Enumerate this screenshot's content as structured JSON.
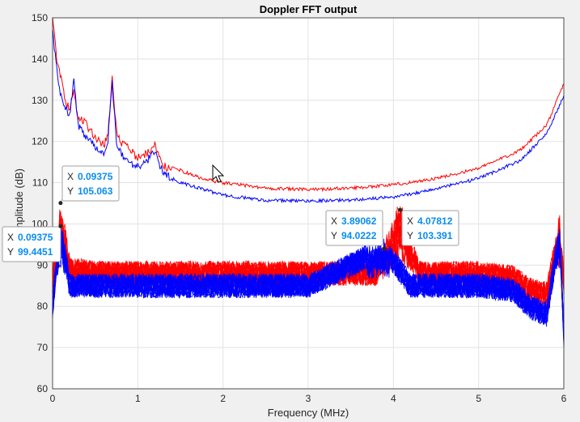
{
  "chart_data": {
    "type": "line",
    "title": "Doppler FFT output",
    "xlabel": "Frequency (MHz)",
    "ylabel": "Amplitude (dB)",
    "xlim": [
      0,
      6
    ],
    "ylim": [
      60,
      150
    ],
    "xticks": [
      "0",
      "1",
      "2",
      "3",
      "4",
      "5",
      "6"
    ],
    "yticks": [
      "60",
      "70",
      "80",
      "90",
      "100",
      "110",
      "120",
      "130",
      "140",
      "150"
    ],
    "grid": true,
    "colors": {
      "red": "#ff0000",
      "blue": "#0000ff"
    },
    "series": [
      {
        "color": "#ff0000",
        "kind": "upper",
        "x": [
          0,
          0.05,
          0.1,
          0.15,
          0.2,
          0.25,
          0.3,
          0.4,
          0.5,
          0.6,
          0.65,
          0.7,
          0.75,
          0.8,
          0.9,
          1.0,
          1.1,
          1.2,
          1.3,
          1.5,
          1.75,
          2,
          2.5,
          3,
          3.5,
          4,
          4.5,
          5,
          5.5,
          5.8,
          6
        ],
        "y": [
          150,
          140,
          135,
          130,
          128,
          132,
          126,
          124,
          121,
          119,
          122,
          135,
          123,
          120,
          118,
          116,
          117,
          119,
          114,
          113,
          111,
          110,
          108.7,
          108.3,
          108.7,
          109.5,
          111,
          113.5,
          118,
          124,
          134
        ]
      },
      {
        "color": "#0000ff",
        "kind": "upper",
        "x": [
          0,
          0.05,
          0.1,
          0.15,
          0.2,
          0.25,
          0.3,
          0.4,
          0.5,
          0.6,
          0.65,
          0.7,
          0.75,
          0.8,
          0.9,
          1.0,
          1.1,
          1.2,
          1.3,
          1.5,
          1.75,
          2,
          2.5,
          3,
          3.5,
          4,
          4.5,
          5,
          5.5,
          5.8,
          6
        ],
        "y": [
          147,
          137,
          131,
          128,
          126,
          135,
          124,
          121,
          119,
          117,
          120,
          134,
          120,
          117,
          115,
          114,
          115,
          118,
          112,
          110,
          108.5,
          107,
          105.7,
          105.6,
          105.8,
          106.5,
          108.5,
          111,
          115.5,
          122,
          131
        ]
      },
      {
        "color": "#ff0000",
        "kind": "noise-band",
        "x": [
          0,
          0.09375,
          0.2,
          0.5,
          1,
          2,
          3,
          3.8,
          4.07812,
          4.3,
          5,
          5.4,
          5.6,
          5.8,
          5.95,
          6
        ],
        "y": [
          86,
          105.063,
          89,
          88,
          88,
          88,
          88,
          88,
          103.391,
          88,
          88,
          87,
          84,
          83,
          100,
          86
        ]
      },
      {
        "color": "#0000ff",
        "kind": "noise-band",
        "x": [
          0,
          0.09375,
          0.2,
          0.5,
          1,
          2,
          3,
          3.89062,
          4.2,
          5,
          5.4,
          5.6,
          5.8,
          5.95,
          6
        ],
        "y": [
          80,
          99.4451,
          85,
          85,
          85,
          85,
          85,
          94.0222,
          85,
          85,
          84,
          80,
          78,
          98,
          73
        ]
      }
    ],
    "datatips": [
      {
        "x_label": "X",
        "y_label": "Y",
        "x": "0.09375",
        "y": "105.063",
        "xv": 0.09375,
        "yv": 105.063
      },
      {
        "x_label": "X",
        "y_label": "Y",
        "x": "0.09375",
        "y": "99.4451",
        "xv": 0.09375,
        "yv": 99.4451
      },
      {
        "x_label": "X",
        "y_label": "Y",
        "x": "3.89062",
        "y": "94.0222",
        "xv": 3.89062,
        "yv": 94.0222
      },
      {
        "x_label": "X",
        "y_label": "Y",
        "x": "4.07812",
        "y": "103.391",
        "xv": 4.07812,
        "yv": 103.391
      }
    ]
  }
}
